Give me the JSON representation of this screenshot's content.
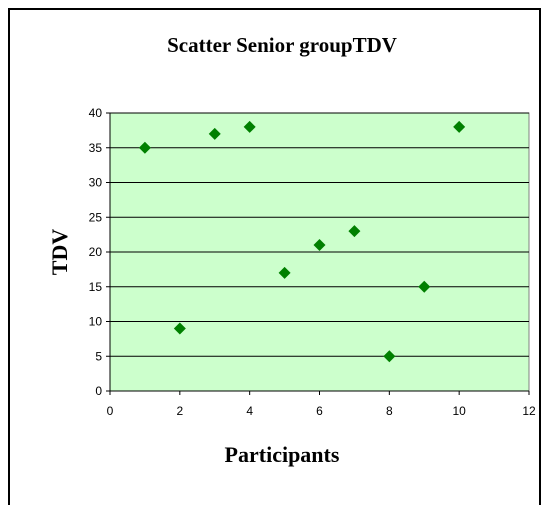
{
  "chart_data": {
    "type": "scatter",
    "title": "Scatter Senior groupTDV",
    "xlabel": "Participants",
    "ylabel": "TDV",
    "xlim": [
      0,
      12
    ],
    "ylim": [
      0,
      40
    ],
    "x_ticks": [
      0,
      2,
      4,
      6,
      8,
      10,
      12
    ],
    "y_ticks": [
      0,
      5,
      10,
      15,
      20,
      25,
      30,
      35,
      40
    ],
    "grid": "horizontal",
    "plot_background": "#ccffcc",
    "marker_color": "#008000",
    "marker": "diamond",
    "legend": "none",
    "points": [
      {
        "x": 1,
        "y": 35
      },
      {
        "x": 2,
        "y": 9
      },
      {
        "x": 3,
        "y": 37
      },
      {
        "x": 4,
        "y": 38
      },
      {
        "x": 5,
        "y": 17
      },
      {
        "x": 6,
        "y": 21
      },
      {
        "x": 7,
        "y": 23
      },
      {
        "x": 8,
        "y": 5
      },
      {
        "x": 9,
        "y": 15
      },
      {
        "x": 10,
        "y": 38
      }
    ]
  }
}
